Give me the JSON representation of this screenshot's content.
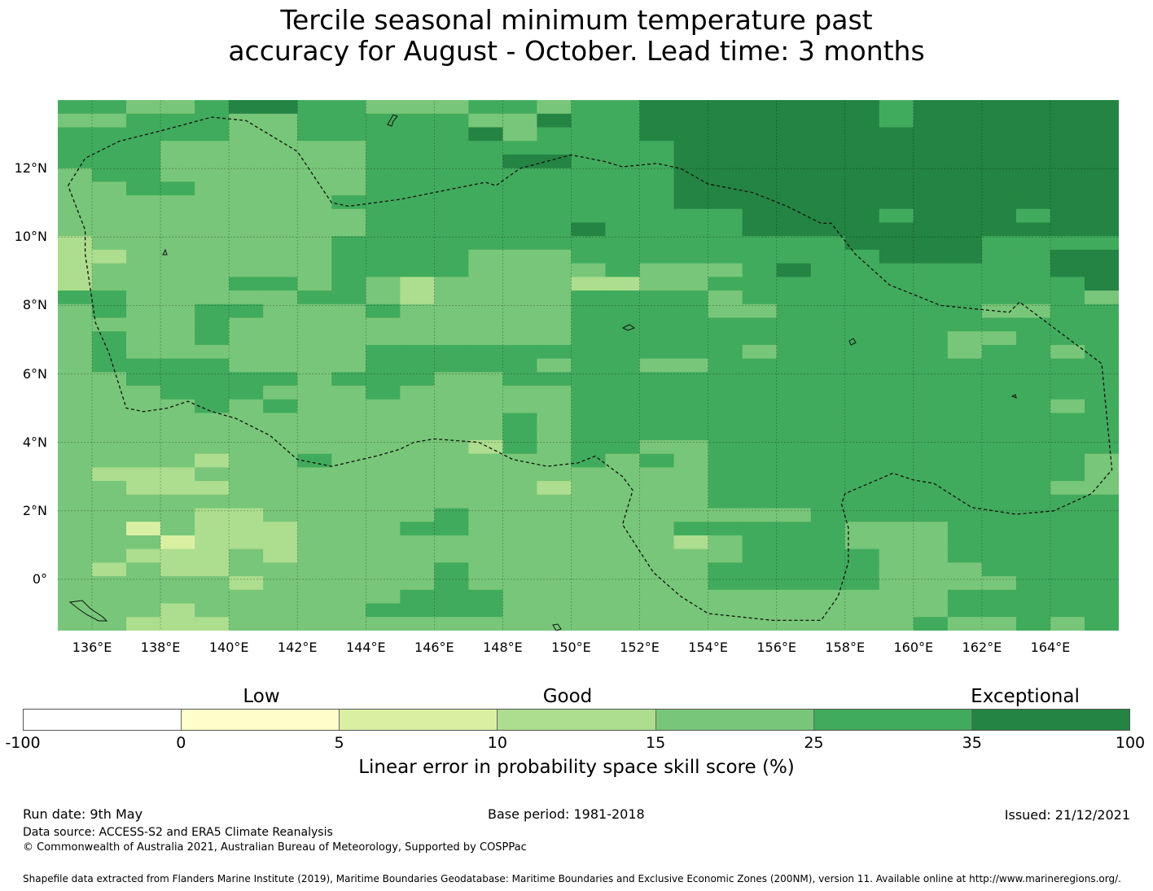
{
  "title": {
    "line1": "Tercile seasonal minimum temperature past",
    "line2": "accuracy for August - October. Lead time: 3 months"
  },
  "map": {
    "lon_range": [
      135,
      166
    ],
    "lat_range": [
      -1.5,
      14
    ],
    "lat_ticks": [
      "12°N",
      "10°N",
      "8°N",
      "6°N",
      "4°N",
      "2°N",
      "0°"
    ],
    "lon_ticks": [
      "136°E",
      "138°E",
      "140°E",
      "142°E",
      "144°E",
      "146°E",
      "148°E",
      "150°E",
      "152°E",
      "154°E",
      "156°E",
      "158°E",
      "160°E",
      "162°E",
      "164°E"
    ],
    "grid": true,
    "cell_legend": "0=0–5, 1=5–10, 2=10–15, 3=15–25, 4=25–35, 5=35–100",
    "cells": [
      "4433455443334434455555554555555",
      "3344433444443354455555554555555",
      "4444433444445344455555555555555",
      "4443333334444444445555555555555",
      "4443333334444554445555555555555",
      "3443333334444444445555555555555",
      "3344333334444444445555555555555",
      "3333333344444444445555555555555",
      "3333333334444444444455554555455",
      "3333333334444445444455555555555",
      "2333333344444444444444455554444",
      "2233333344443334444444445554455",
      "2333333344443333433345444444455",
      "2333344343233332233444444444445",
      "4433333443233334444344444444443",
      "3433443334333334444334444443344",
      "3333433333333334444444444444444",
      "3433433333333334444444444433444",
      "3433333334444444444434444434434",
      "3444433334444434433444444444444",
      "3344444344433444444444444444444",
      "3334443334333334444444444444444",
      "3333434333333334444444444444434",
      "3333333333333434444444444444444",
      "3333333333333434444444444444444",
      "3333333333332434433444444444444",
      "3333233433333334343444444444443",
      "3222333333333333333444444444443",
      "3322233333333323333444444444433",
      "3333333333333333333444444444444",
      "3333223333343333333333444444444",
      "3313222333443333334444433344444",
      "3331222333333333332344433344444",
      "3322232333333333333344443344444",
      "3232233333343333333444443334444",
      "3333323333343333333444443333444",
      "3333333333444333333333333344444",
      "3332333334444333333333333344444",
      "3322233333333333333333333433434"
    ],
    "eez_boundary": [
      [
        135.3,
        11.5
      ],
      [
        135.8,
        12.3
      ],
      [
        136.8,
        12.8
      ],
      [
        138,
        13.1
      ],
      [
        139.5,
        13.5
      ],
      [
        140.5,
        13.4
      ],
      [
        142,
        12.5
      ],
      [
        143,
        11.0
      ],
      [
        143.5,
        10.9
      ],
      [
        145,
        11.1
      ],
      [
        147.5,
        11.6
      ],
      [
        147.8,
        11.5
      ],
      [
        148.5,
        12.0
      ],
      [
        150,
        12.4
      ],
      [
        151,
        12.2
      ],
      [
        151.5,
        12.05
      ],
      [
        152.5,
        12.15
      ],
      [
        153.2,
        12.0
      ],
      [
        154,
        11.55
      ],
      [
        155.3,
        11.3
      ],
      [
        156.3,
        10.9
      ],
      [
        157.3,
        10.4
      ],
      [
        157.6,
        10.4
      ],
      [
        158.3,
        9.5
      ],
      [
        159.3,
        8.6
      ],
      [
        160.8,
        8.0
      ],
      [
        162.8,
        7.8
      ],
      [
        163.1,
        8.1
      ],
      [
        165.5,
        6.3
      ],
      [
        165.8,
        3.2
      ],
      [
        165.2,
        2.5
      ],
      [
        164.1,
        2.0
      ],
      [
        163,
        1.9
      ],
      [
        161.7,
        2.1
      ],
      [
        160.6,
        2.8
      ],
      [
        160,
        2.9
      ],
      [
        159.4,
        3.1
      ],
      [
        158.7,
        2.8
      ],
      [
        158,
        2.5
      ],
      [
        157.9,
        2.2
      ],
      [
        158.1,
        1.5
      ],
      [
        158.1,
        0.5
      ],
      [
        157.8,
        -0.5
      ],
      [
        157.3,
        -1.2
      ],
      [
        155.9,
        -1.2
      ],
      [
        154,
        -1.0
      ],
      [
        153.2,
        -0.5
      ],
      [
        152.4,
        0.2
      ],
      [
        151.5,
        1.6
      ],
      [
        151.8,
        2.6
      ],
      [
        151.5,
        3.0
      ],
      [
        150.7,
        3.6
      ],
      [
        150.2,
        3.4
      ],
      [
        149.3,
        3.3
      ],
      [
        148.3,
        3.5
      ],
      [
        147.3,
        4.0
      ],
      [
        146,
        4.1
      ],
      [
        145.4,
        4.0
      ],
      [
        145,
        3.8
      ],
      [
        144.3,
        3.6
      ],
      [
        143,
        3.3
      ],
      [
        142,
        3.5
      ],
      [
        141.2,
        4.2
      ],
      [
        140.2,
        4.7
      ],
      [
        139.5,
        4.9
      ],
      [
        138.8,
        5.2
      ],
      [
        138.2,
        5.0
      ],
      [
        137.5,
        4.9
      ],
      [
        137,
        5.0
      ],
      [
        136.5,
        6.6
      ],
      [
        136.1,
        7.5
      ],
      [
        135.8,
        9.5
      ],
      [
        135.8,
        10.2
      ],
      [
        135.3,
        11.5
      ]
    ]
  },
  "colors": {
    "bins": [
      "#ffffff",
      "#ffffcc",
      "#d9f0a3",
      "#addd8e",
      "#78c679",
      "#41ab5d",
      "#238443"
    ]
  },
  "colorbar": {
    "categories": [
      "Low",
      "Good",
      "Exceptional"
    ],
    "ticks": [
      "-100",
      "0",
      "5",
      "10",
      "15",
      "25",
      "35",
      "100"
    ],
    "label": "Linear error in probability space skill score (%)"
  },
  "footer": {
    "run_date": "Run date: 9th May",
    "base_period": "Base period: 1981-2018",
    "issued": "Issued: 21/12/2021",
    "data_source": "Data source: ACCESS-S2 and ERA5 Climate Reanalysis",
    "copyright": "© Commonwealth of Australia 2021, Australian Bureau of Meteorology, Supported by COSPPac",
    "shapefile": "Shapefile data extracted from Flanders Marine Institute (2019), Maritime Boundaries Geodatabase: Maritime Boundaries and Exclusive Economic Zones (200NM), version 11. Available online at http://www.marineregions.org/."
  }
}
